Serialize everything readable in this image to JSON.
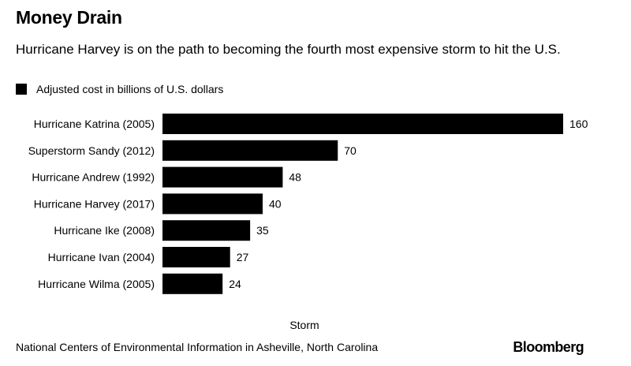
{
  "title": "Money Drain",
  "subtitle": "Hurricane Harvey is on the path to becoming the fourth most expensive storm to hit the U.S.",
  "legend_label": "Adjusted cost in billions of U.S. dollars",
  "source": "National Centers of Environmental Information in Asheville, North Carolina",
  "brand": "Bloomberg",
  "chart_data": {
    "type": "bar",
    "orientation": "horizontal",
    "categories": [
      "Hurricane Katrina (2005)",
      "Superstorm Sandy (2012)",
      "Hurricane Andrew (1992)",
      "Hurricane Harvey (2017)",
      "Hurricane Ike (2008)",
      "Hurricane Ivan (2004)",
      "Hurricane Wilma (2005)"
    ],
    "series": [
      {
        "name": "Adjusted cost in billions of U.S. dollars",
        "values": [
          160,
          70,
          48,
          40,
          35,
          27,
          24
        ]
      }
    ],
    "xlabel": "Storm",
    "ylabel": "",
    "xlim": [
      0,
      160
    ],
    "bar_color": "#000000",
    "legend": "top-left",
    "grid": false
  }
}
